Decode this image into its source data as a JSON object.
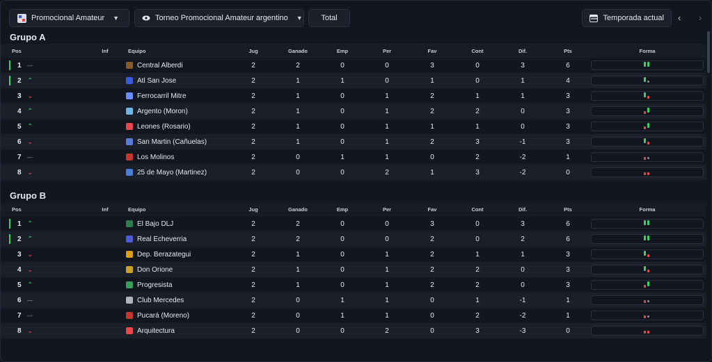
{
  "toolbar": {
    "competition": "Promocional Amateur",
    "tournament": "Torneo Promocional Amateur argentino",
    "total": "Total",
    "season": "Temporada actual"
  },
  "headers": {
    "pos": "Pos",
    "inf": "Inf",
    "team": "Equipo",
    "played": "Jug",
    "won": "Ganado",
    "drawn": "Emp",
    "lost": "Per",
    "gf": "Fav",
    "ga": "Cont",
    "diff": "Dif.",
    "pts": "Pts",
    "form": "Forma"
  },
  "colors": {
    "win": "#3ccf6b",
    "loss": "#e5484d",
    "draw": "#8a8f9a",
    "accent": "#3ccf6b"
  },
  "groups": [
    {
      "title": "Grupo A",
      "rows": [
        {
          "pos": "1",
          "trend": "flat",
          "team": "Central Alberdi",
          "jug": "2",
          "g": "2",
          "e": "0",
          "p": "0",
          "fav": "3",
          "cont": "0",
          "dif": "3",
          "pts": "6",
          "form": [
            "W",
            "W"
          ],
          "q": true,
          "crest": "#8a5a2b"
        },
        {
          "pos": "2",
          "trend": "up",
          "team": "Atl San Jose",
          "jug": "2",
          "g": "1",
          "e": "1",
          "p": "0",
          "fav": "1",
          "cont": "0",
          "dif": "1",
          "pts": "4",
          "form": [
            "W",
            "D"
          ],
          "q": true,
          "crest": "#3b5bdb"
        },
        {
          "pos": "3",
          "trend": "down",
          "team": "Ferrocarril Mitre",
          "jug": "2",
          "g": "1",
          "e": "0",
          "p": "1",
          "fav": "2",
          "cont": "1",
          "dif": "1",
          "pts": "3",
          "form": [
            "W",
            "L"
          ],
          "q": false,
          "crest": "#6b8cff"
        },
        {
          "pos": "4",
          "trend": "up",
          "team": "Argento (Moron)",
          "jug": "2",
          "g": "1",
          "e": "0",
          "p": "1",
          "fav": "2",
          "cont": "2",
          "dif": "0",
          "pts": "3",
          "form": [
            "L",
            "W"
          ],
          "q": false,
          "crest": "#6fb3e0"
        },
        {
          "pos": "5",
          "trend": "up",
          "team": "Leones (Rosario)",
          "jug": "2",
          "g": "1",
          "e": "0",
          "p": "1",
          "fav": "1",
          "cont": "1",
          "dif": "0",
          "pts": "3",
          "form": [
            "L",
            "W"
          ],
          "q": false,
          "crest": "#e5484d"
        },
        {
          "pos": "6",
          "trend": "down",
          "team": "San Martin (Cañuelas)",
          "jug": "2",
          "g": "1",
          "e": "0",
          "p": "1",
          "fav": "2",
          "cont": "3",
          "dif": "-1",
          "pts": "3",
          "form": [
            "W",
            "L"
          ],
          "q": false,
          "crest": "#5b7bd5"
        },
        {
          "pos": "7",
          "trend": "flat",
          "team": "Los Molinos",
          "jug": "2",
          "g": "0",
          "e": "1",
          "p": "1",
          "fav": "0",
          "cont": "2",
          "dif": "-2",
          "pts": "1",
          "form": [
            "L",
            "D"
          ],
          "q": false,
          "crest": "#c0392b"
        },
        {
          "pos": "8",
          "trend": "down",
          "team": "25 de Mayo (Martinez)",
          "jug": "2",
          "g": "0",
          "e": "0",
          "p": "2",
          "fav": "1",
          "cont": "3",
          "dif": "-2",
          "pts": "0",
          "form": [
            "L",
            "L"
          ],
          "q": false,
          "crest": "#4a7fd4"
        }
      ]
    },
    {
      "title": "Grupo B",
      "rows": [
        {
          "pos": "1",
          "trend": "up",
          "team": "El Bajo DLJ",
          "jug": "2",
          "g": "2",
          "e": "0",
          "p": "0",
          "fav": "3",
          "cont": "0",
          "dif": "3",
          "pts": "6",
          "form": [
            "W",
            "W"
          ],
          "q": true,
          "crest": "#2e7d4f"
        },
        {
          "pos": "2",
          "trend": "up",
          "team": "Real Echeverria",
          "jug": "2",
          "g": "2",
          "e": "0",
          "p": "0",
          "fav": "2",
          "cont": "0",
          "dif": "2",
          "pts": "6",
          "form": [
            "W",
            "W"
          ],
          "q": true,
          "crest": "#4a5bd4"
        },
        {
          "pos": "3",
          "trend": "down",
          "team": "Dep. Berazategui",
          "jug": "2",
          "g": "1",
          "e": "0",
          "p": "1",
          "fav": "2",
          "cont": "1",
          "dif": "1",
          "pts": "3",
          "form": [
            "W",
            "L"
          ],
          "q": false,
          "crest": "#d4a017"
        },
        {
          "pos": "4",
          "trend": "down",
          "team": "Don Orione",
          "jug": "2",
          "g": "1",
          "e": "0",
          "p": "1",
          "fav": "2",
          "cont": "2",
          "dif": "0",
          "pts": "3",
          "form": [
            "W",
            "L"
          ],
          "q": false,
          "crest": "#c9a227"
        },
        {
          "pos": "5",
          "trend": "up",
          "team": "Progresista",
          "jug": "2",
          "g": "1",
          "e": "0",
          "p": "1",
          "fav": "2",
          "cont": "2",
          "dif": "0",
          "pts": "3",
          "form": [
            "L",
            "W"
          ],
          "q": false,
          "crest": "#3a9d5d"
        },
        {
          "pos": "6",
          "trend": "flat",
          "team": "Club Mercedes",
          "jug": "2",
          "g": "0",
          "e": "1",
          "p": "1",
          "fav": "0",
          "cont": "1",
          "dif": "-1",
          "pts": "1",
          "form": [
            "L",
            "D"
          ],
          "q": false,
          "crest": "#b0b4bd"
        },
        {
          "pos": "7",
          "trend": "flat",
          "team": "Pucará (Moreno)",
          "jug": "2",
          "g": "0",
          "e": "1",
          "p": "1",
          "fav": "0",
          "cont": "2",
          "dif": "-2",
          "pts": "1",
          "form": [
            "L",
            "D"
          ],
          "q": false,
          "crest": "#c0392b"
        },
        {
          "pos": "8",
          "trend": "down",
          "team": "Arquitectura",
          "jug": "2",
          "g": "0",
          "e": "0",
          "p": "2",
          "fav": "0",
          "cont": "3",
          "dif": "-3",
          "pts": "0",
          "form": [
            "L",
            "L"
          ],
          "q": false,
          "crest": "#e5484d"
        }
      ]
    }
  ]
}
